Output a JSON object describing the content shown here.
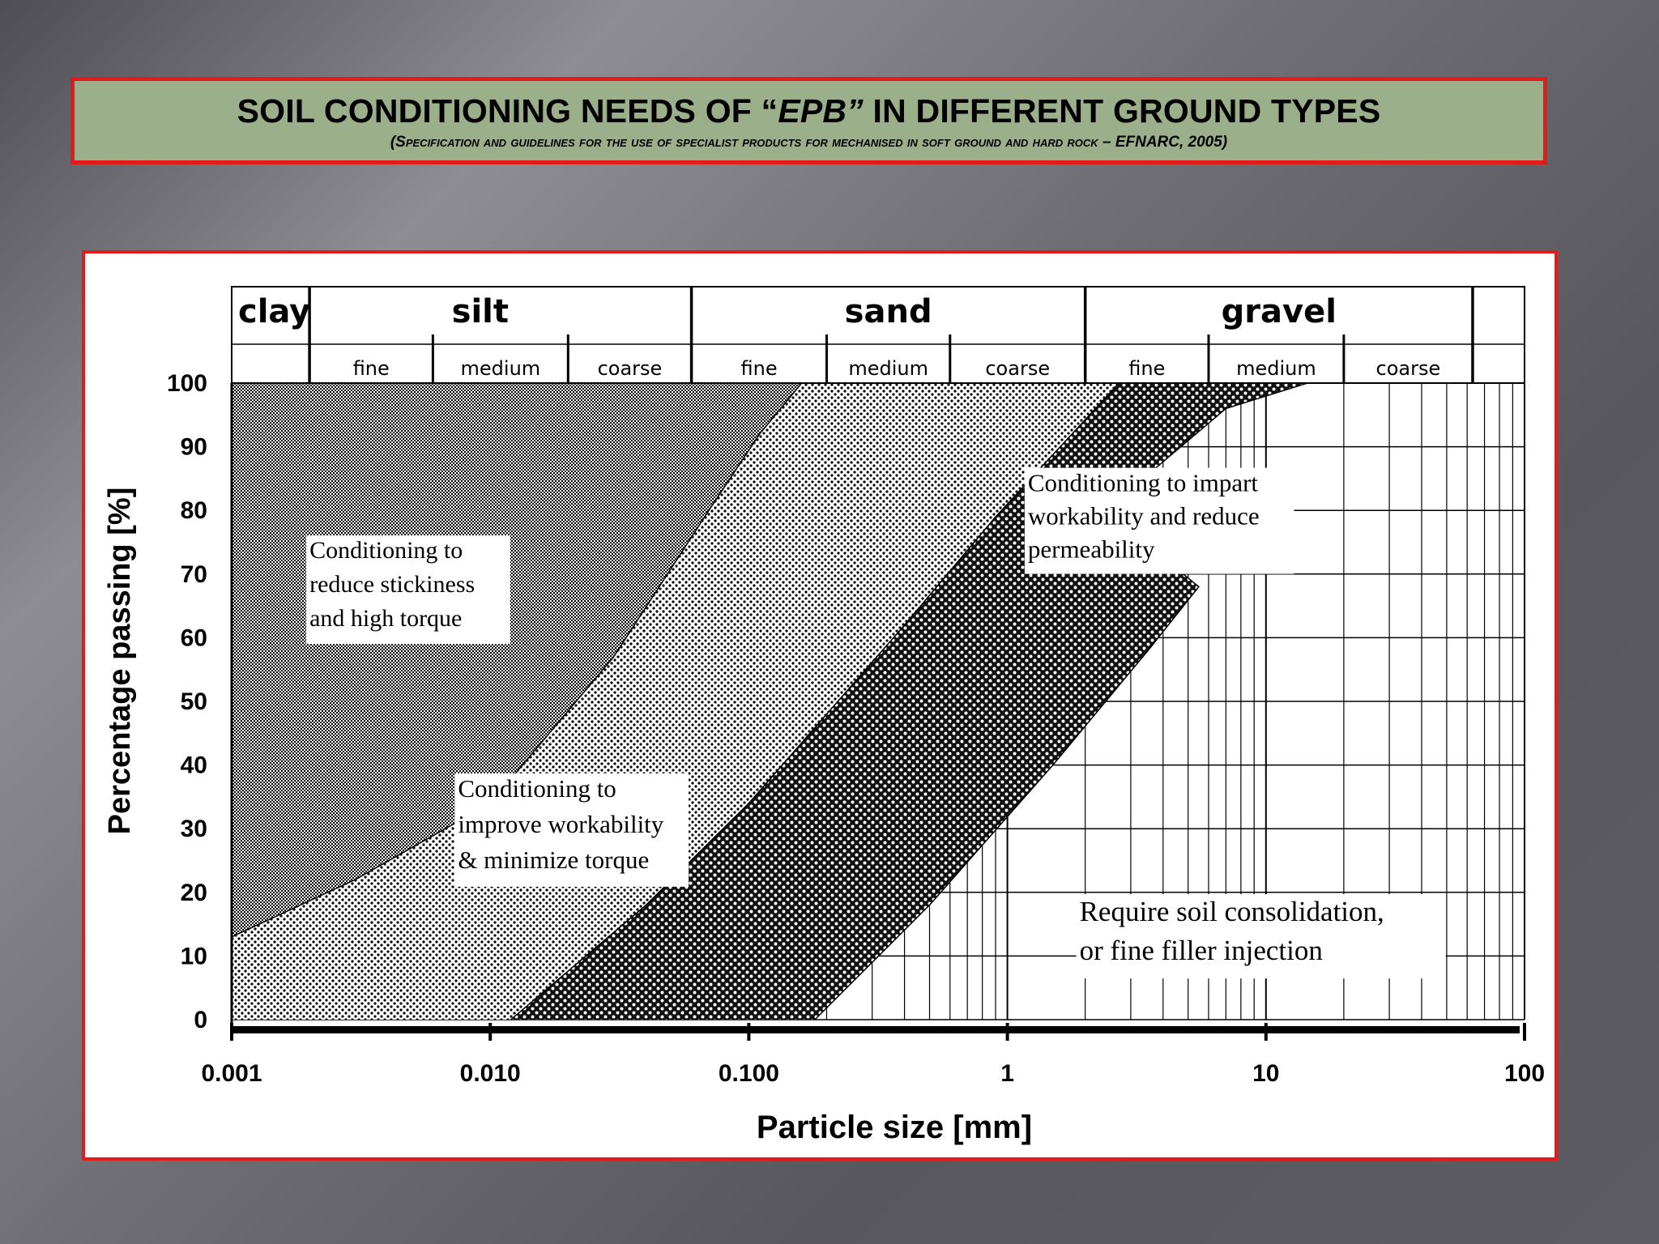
{
  "header": {
    "title_pre": "SOIL   CONDITIONING NEEDS OF “",
    "title_epb": "EPB”",
    "title_post": "  IN DIFFERENT GROUND TYPES",
    "subtitle": "(Specification and guidelines for the use of specialist products for mechanised  in soft ground and hard rock – EFNARC, 2005)"
  },
  "colors": {
    "frame_border": "#e41b1b",
    "header_bg": "#9bb08a"
  },
  "chart_data": {
    "type": "area",
    "xlabel": "Particle size [mm]",
    "ylabel": "Percentage passing [%]",
    "xscale": "log",
    "xlim": [
      0.001,
      100
    ],
    "ylim": [
      0,
      100
    ],
    "x_ticks": [
      "0.001",
      "0.010",
      "0.100",
      "1",
      "10",
      "100"
    ],
    "y_ticks": [
      "0",
      "10",
      "20",
      "30",
      "40",
      "50",
      "60",
      "70",
      "80",
      "90",
      "100"
    ],
    "soil_classes": [
      {
        "name": "clay",
        "from": 0.001,
        "to": 0.002,
        "subs": []
      },
      {
        "name": "silt",
        "from": 0.002,
        "to": 0.06,
        "subs": [
          {
            "name": "fine",
            "from": 0.002,
            "to": 0.006
          },
          {
            "name": "medium",
            "from": 0.006,
            "to": 0.02
          },
          {
            "name": "coarse",
            "from": 0.02,
            "to": 0.06
          }
        ]
      },
      {
        "name": "sand",
        "from": 0.06,
        "to": 2,
        "subs": [
          {
            "name": "fine",
            "from": 0.06,
            "to": 0.2
          },
          {
            "name": "medium",
            "from": 0.2,
            "to": 0.6
          },
          {
            "name": "coarse",
            "from": 0.6,
            "to": 2
          }
        ]
      },
      {
        "name": "gravel",
        "from": 2,
        "to": 63,
        "subs": [
          {
            "name": "fine",
            "from": 2,
            "to": 6
          },
          {
            "name": "medium",
            "from": 6,
            "to": 20
          },
          {
            "name": "coarse",
            "from": 20,
            "to": 63
          }
        ]
      }
    ],
    "boundaries": [
      {
        "points": [
          [
            0.001,
            13
          ],
          [
            0.003,
            22
          ],
          [
            0.01,
            34
          ],
          [
            0.03,
            57
          ],
          [
            0.07,
            80
          ],
          [
            0.11,
            92
          ],
          [
            0.16,
            100
          ]
        ]
      },
      {
        "points": [
          [
            0.012,
            0
          ],
          [
            0.04,
            18
          ],
          [
            0.1,
            34
          ],
          [
            0.4,
            62
          ],
          [
            0.9,
            79
          ],
          [
            2.7,
            100
          ]
        ]
      },
      {
        "points": [
          [
            0.18,
            0
          ],
          [
            0.5,
            18
          ],
          [
            1.5,
            40
          ],
          [
            3.5,
            58
          ],
          [
            5.5,
            68
          ]
        ]
      },
      {
        "points": [
          [
            2.4,
            80
          ],
          [
            7,
            96
          ],
          [
            14.5,
            100
          ]
        ]
      }
    ],
    "zones": [
      {
        "label": [
          "Conditioning to",
          "reduce stickiness",
          "and high torque"
        ]
      },
      {
        "label": [
          "Conditioning to",
          "improve workability",
          "& minimize torque"
        ]
      },
      {
        "label": [
          "Conditioning to impart",
          "workability and reduce",
          "permeability"
        ]
      },
      {
        "label": [
          "Require soil consolidation,",
          "or fine filler injection"
        ]
      }
    ]
  }
}
